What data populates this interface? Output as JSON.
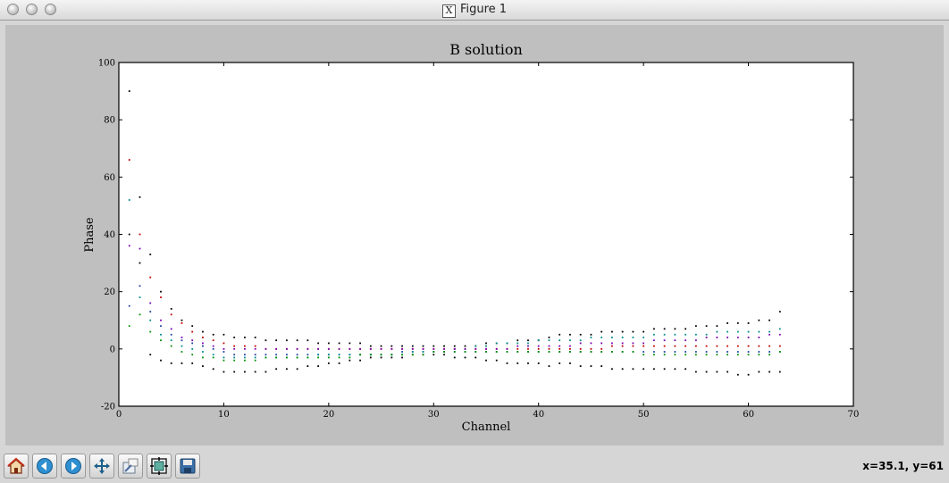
{
  "window": {
    "title": "Figure 1"
  },
  "status": {
    "coords": "x=35.1, y=61"
  },
  "toolbar": {
    "buttons": [
      "home-icon",
      "back-icon",
      "forward-icon",
      "pan-icon",
      "zoom-icon",
      "subplots-icon",
      "save-icon"
    ]
  },
  "chart_data": {
    "type": "scatter",
    "title": "B solution",
    "xlabel": "Channel",
    "ylabel": "Phase",
    "xlim": [
      0,
      70
    ],
    "ylim": [
      -20,
      100
    ],
    "xticks": [
      0,
      10,
      20,
      30,
      40,
      50,
      60,
      70
    ],
    "yticks": [
      -20,
      0,
      20,
      40,
      60,
      80,
      100
    ],
    "grid": false,
    "colors": [
      "#000000",
      "#1f3f9f",
      "#c00000",
      "#008c8c",
      "#009000",
      "#7a00b0"
    ],
    "series": [
      {
        "color": "#000000",
        "x": [
          1,
          2,
          3,
          4,
          5,
          6,
          7,
          8,
          9,
          10,
          11,
          12,
          13,
          14,
          15,
          16,
          17,
          18,
          19,
          20,
          21,
          22,
          23,
          24,
          25,
          26,
          27,
          28,
          29,
          30,
          31,
          32,
          33,
          34,
          35,
          36,
          37,
          38,
          39,
          40,
          41,
          42,
          43,
          44,
          45,
          46,
          47,
          48,
          49,
          50,
          51,
          52,
          53,
          54,
          55,
          56,
          57,
          58,
          59,
          60,
          61,
          62,
          63
        ],
        "y": [
          40,
          30,
          -2,
          -4,
          -5,
          -5,
          -5,
          -6,
          -7,
          -8,
          -8,
          -8,
          -8,
          -8,
          -7,
          -7,
          -7,
          -6,
          -6,
          -5,
          -5,
          -4,
          -4,
          -3,
          -3,
          -3,
          -3,
          -2,
          -2,
          -2,
          -2,
          -3,
          -3,
          -3,
          -4,
          -4,
          -5,
          -5,
          -5,
          -5,
          -6,
          -5,
          -5,
          -6,
          -6,
          -6,
          -7,
          -7,
          -7,
          -7,
          -7,
          -7,
          -7,
          -7,
          -8,
          -8,
          -8,
          -8,
          -9,
          -9,
          -8,
          -8,
          -8
        ]
      },
      {
        "color": "#000000",
        "x": [
          1,
          2,
          3,
          4,
          5,
          6,
          7,
          8,
          9,
          10,
          11,
          12,
          13,
          14,
          15,
          16,
          17,
          18,
          19,
          20,
          21,
          22,
          23,
          24,
          25,
          26,
          27,
          28,
          29,
          30,
          31,
          32,
          33,
          34,
          35,
          36,
          37,
          38,
          39,
          40,
          41,
          42,
          43,
          44,
          45,
          46,
          47,
          48,
          49,
          50,
          51,
          52,
          53,
          54,
          55,
          56,
          57,
          58,
          59,
          60,
          61,
          62,
          63
        ],
        "y": [
          90,
          53,
          33,
          20,
          14,
          10,
          8,
          6,
          5,
          5,
          4,
          4,
          4,
          3,
          3,
          3,
          3,
          3,
          2,
          2,
          2,
          2,
          2,
          1,
          1,
          1,
          1,
          1,
          1,
          1,
          1,
          1,
          1,
          1,
          2,
          2,
          2,
          3,
          3,
          3,
          4,
          5,
          5,
          5,
          5,
          6,
          6,
          6,
          6,
          6,
          7,
          7,
          7,
          7,
          8,
          8,
          8,
          9,
          9,
          9,
          10,
          10,
          13
        ]
      },
      {
        "color": "#1f3f9f",
        "x": [
          1,
          2,
          3,
          4,
          5,
          6,
          7,
          8,
          9,
          10,
          11,
          12,
          13,
          14,
          15,
          16,
          17,
          18,
          19,
          20,
          21,
          22,
          23,
          24,
          25,
          26,
          27,
          28,
          29,
          30,
          31,
          32,
          33,
          34,
          35,
          36,
          37,
          38,
          39,
          40,
          41,
          42,
          43,
          44,
          45,
          46,
          47,
          48,
          49,
          50,
          51,
          52,
          53,
          54,
          55,
          56,
          57,
          58,
          59,
          60,
          61,
          62,
          63
        ],
        "y": [
          15,
          22,
          13,
          8,
          5,
          3,
          2,
          1,
          0,
          -1,
          -2,
          -2,
          -2,
          -2,
          -2,
          -2,
          -2,
          -2,
          -2,
          -2,
          -2,
          -2,
          -2,
          -2,
          -2,
          -2,
          -1,
          -1,
          -1,
          -1,
          -1,
          -1,
          -1,
          -1,
          -1,
          -1,
          -1,
          -1,
          -1,
          -1,
          -1,
          -1,
          -1,
          -1,
          -1,
          -1,
          -1,
          -1,
          -1,
          -1,
          -1,
          -1,
          -1,
          -1,
          -1,
          -1,
          -1,
          -1,
          -1,
          -1,
          -1,
          -1,
          -1
        ]
      },
      {
        "color": "#c00000",
        "x": [
          1,
          2,
          3,
          4,
          5,
          6,
          7,
          8,
          9,
          10,
          11,
          12,
          13,
          14,
          15,
          16,
          17,
          18,
          19,
          20,
          21,
          22,
          23,
          24,
          25,
          26,
          27,
          28,
          29,
          30,
          31,
          32,
          33,
          34,
          35,
          36,
          37,
          38,
          39,
          40,
          41,
          42,
          43,
          44,
          45,
          46,
          47,
          48,
          49,
          50,
          51,
          52,
          53,
          54,
          55,
          56,
          57,
          58,
          59,
          60,
          61,
          62,
          63
        ],
        "y": [
          66,
          40,
          25,
          18,
          12,
          9,
          6,
          4,
          3,
          2,
          1,
          1,
          1,
          0,
          0,
          0,
          0,
          0,
          0,
          0,
          0,
          0,
          0,
          0,
          0,
          0,
          0,
          0,
          0,
          0,
          0,
          0,
          0,
          0,
          0,
          0,
          0,
          0,
          0,
          0,
          0,
          0,
          0,
          0,
          0,
          0,
          1,
          1,
          1,
          1,
          1,
          1,
          1,
          1,
          1,
          1,
          1,
          1,
          1,
          1,
          1,
          1,
          1
        ]
      },
      {
        "color": "#008c8c",
        "x": [
          1,
          2,
          3,
          4,
          5,
          6,
          7,
          8,
          9,
          10,
          11,
          12,
          13,
          14,
          15,
          16,
          17,
          18,
          19,
          20,
          21,
          22,
          23,
          24,
          25,
          26,
          27,
          28,
          29,
          30,
          31,
          32,
          33,
          34,
          35,
          36,
          37,
          38,
          39,
          40,
          41,
          42,
          43,
          44,
          45,
          46,
          47,
          48,
          49,
          50,
          51,
          52,
          53,
          54,
          55,
          56,
          57,
          58,
          59,
          60,
          61,
          62,
          63
        ],
        "y": [
          52,
          18,
          10,
          5,
          3,
          1,
          0,
          -1,
          -2,
          -3,
          -3,
          -3,
          -3,
          -3,
          -3,
          -3,
          -3,
          -3,
          -2,
          -2,
          -2,
          -2,
          -2,
          -2,
          -2,
          -2,
          -2,
          -1,
          -1,
          -1,
          -1,
          0,
          0,
          1,
          1,
          2,
          2,
          2,
          2,
          3,
          3,
          3,
          3,
          3,
          4,
          4,
          4,
          4,
          4,
          4,
          5,
          5,
          5,
          5,
          5,
          5,
          6,
          6,
          6,
          6,
          6,
          6,
          7
        ]
      },
      {
        "color": "#009000",
        "x": [
          1,
          2,
          3,
          4,
          5,
          6,
          7,
          8,
          9,
          10,
          11,
          12,
          13,
          14,
          15,
          16,
          17,
          18,
          19,
          20,
          21,
          22,
          23,
          24,
          25,
          26,
          27,
          28,
          29,
          30,
          31,
          32,
          33,
          34,
          35,
          36,
          37,
          38,
          39,
          40,
          41,
          42,
          43,
          44,
          45,
          46,
          47,
          48,
          49,
          50,
          51,
          52,
          53,
          54,
          55,
          56,
          57,
          58,
          59,
          60,
          61,
          62,
          63
        ],
        "y": [
          8,
          12,
          6,
          3,
          1,
          -1,
          -2,
          -3,
          -3,
          -4,
          -4,
          -4,
          -4,
          -3,
          -3,
          -3,
          -3,
          -3,
          -3,
          -3,
          -3,
          -3,
          -2,
          -2,
          -2,
          -2,
          -2,
          -2,
          -2,
          -1,
          -1,
          -1,
          -1,
          -1,
          -1,
          -1,
          -1,
          -1,
          -1,
          -1,
          -1,
          -1,
          -1,
          -1,
          -1,
          -1,
          -1,
          -1,
          -1,
          -2,
          -2,
          -2,
          -2,
          -2,
          -2,
          -2,
          -2,
          -2,
          -2,
          -2,
          -2,
          -2,
          -1
        ]
      },
      {
        "color": "#7a00b0",
        "x": [
          1,
          2,
          3,
          4,
          5,
          6,
          7,
          8,
          9,
          10,
          11,
          12,
          13,
          14,
          15,
          16,
          17,
          18,
          19,
          20,
          21,
          22,
          23,
          24,
          25,
          26,
          27,
          28,
          29,
          30,
          31,
          32,
          33,
          34,
          35,
          36,
          37,
          38,
          39,
          40,
          41,
          42,
          43,
          44,
          45,
          46,
          47,
          48,
          49,
          50,
          51,
          52,
          53,
          54,
          55,
          56,
          57,
          58,
          59,
          60,
          61,
          62,
          63
        ],
        "y": [
          36,
          35,
          16,
          10,
          7,
          4,
          3,
          2,
          1,
          0,
          0,
          0,
          0,
          0,
          0,
          0,
          0,
          0,
          0,
          0,
          0,
          0,
          0,
          0,
          0,
          0,
          0,
          0,
          0,
          0,
          0,
          0,
          0,
          0,
          0,
          0,
          0,
          1,
          1,
          1,
          1,
          1,
          1,
          2,
          2,
          2,
          2,
          2,
          2,
          2,
          3,
          3,
          3,
          3,
          3,
          4,
          4,
          4,
          4,
          4,
          4,
          5,
          5
        ]
      }
    ]
  }
}
